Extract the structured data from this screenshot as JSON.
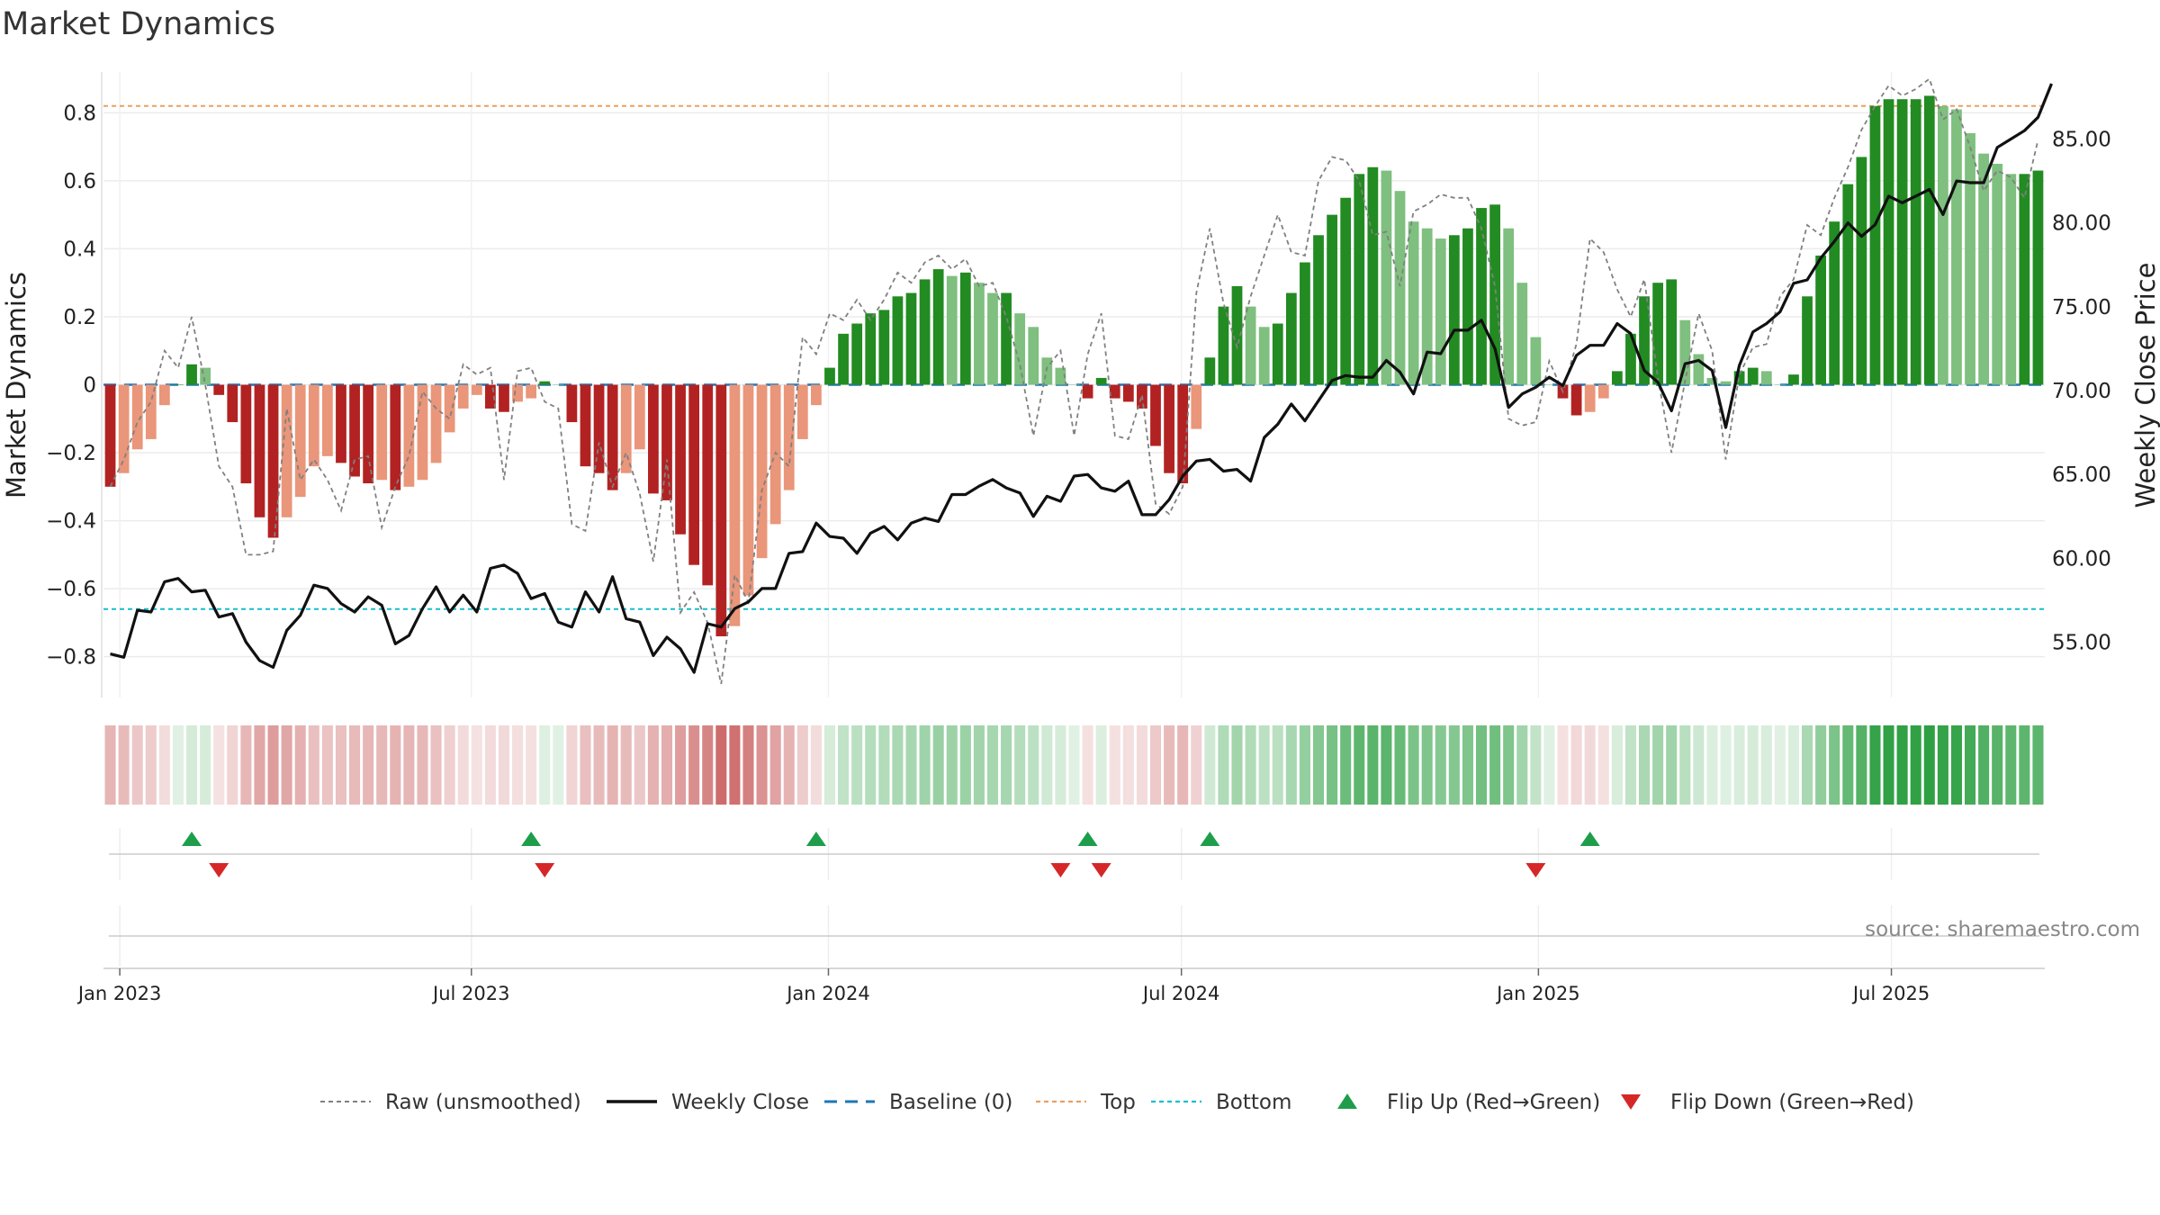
{
  "title": "Market Dynamics",
  "source": "source: sharemaestro.com",
  "colors": {
    "green_strong": "#228B22",
    "green_light": "#7FBF7F",
    "red_strong": "#B22222",
    "red_light": "#E9967A",
    "raw": "#808080",
    "close": "#111111",
    "baseline": "#1F77B4",
    "top": "#E8A060",
    "bottom": "#17BECF",
    "flip_up": "#1E9E4A",
    "flip_down": "#D62728"
  },
  "chart_data": {
    "type": "bar",
    "title": "Market Dynamics",
    "ylabel": "Market Dynamics",
    "y2label": "Weekly Close Price",
    "ylim": [
      -0.92,
      0.92
    ],
    "y2lim": [
      51.7,
      89.0
    ],
    "yticks": [
      {
        "v": 0.8,
        "label": "0.8"
      },
      {
        "v": 0.6,
        "label": "0.6"
      },
      {
        "v": 0.4,
        "label": "0.4"
      },
      {
        "v": 0.2,
        "label": "0.2"
      },
      {
        "v": 0,
        "label": "0"
      },
      {
        "v": -0.2,
        "label": "−0.2"
      },
      {
        "v": -0.4,
        "label": "−0.4"
      },
      {
        "v": -0.6,
        "label": "−0.6"
      },
      {
        "v": -0.8,
        "label": "−0.8"
      }
    ],
    "y2ticks": [
      {
        "v": 85,
        "label": "85.00"
      },
      {
        "v": 80,
        "label": "80.00"
      },
      {
        "v": 75,
        "label": "75.00"
      },
      {
        "v": 70,
        "label": "70.00"
      },
      {
        "v": 65,
        "label": "65.00"
      },
      {
        "v": 60,
        "label": "60.00"
      },
      {
        "v": 55,
        "label": "55.00"
      }
    ],
    "xticks": [
      {
        "week": 0.7,
        "label": "Jan 2023"
      },
      {
        "week": 26.6,
        "label": "Jul 2023"
      },
      {
        "week": 52.9,
        "label": "Jan 2024"
      },
      {
        "week": 78.9,
        "label": "Jul 2024"
      },
      {
        "week": 105.2,
        "label": "Jan 2025"
      },
      {
        "week": 131.2,
        "label": "Jul 2025"
      }
    ],
    "top": 0.82,
    "bottom": -0.66,
    "series": [
      {
        "name": "Market Dynamics",
        "values": [
          -0.3,
          -0.26,
          -0.19,
          -0.16,
          -0.06,
          0.0,
          0.06,
          0.05,
          -0.03,
          -0.11,
          -0.29,
          -0.39,
          -0.45,
          -0.39,
          -0.33,
          -0.24,
          -0.21,
          -0.23,
          -0.27,
          -0.29,
          -0.28,
          -0.31,
          -0.3,
          -0.28,
          -0.23,
          -0.14,
          -0.07,
          -0.03,
          -0.07,
          -0.08,
          -0.05,
          -0.04,
          0.01,
          0.0,
          -0.11,
          -0.24,
          -0.26,
          -0.31,
          -0.26,
          -0.19,
          -0.32,
          -0.34,
          -0.44,
          -0.53,
          -0.59,
          -0.74,
          -0.71,
          -0.62,
          -0.51,
          -0.41,
          -0.31,
          -0.16,
          -0.06,
          0.05,
          0.15,
          0.18,
          0.21,
          0.22,
          0.26,
          0.27,
          0.31,
          0.34,
          0.32,
          0.33,
          0.3,
          0.27,
          0.27,
          0.21,
          0.17,
          0.08,
          0.05,
          0.0,
          -0.04,
          0.02,
          -0.04,
          -0.05,
          -0.07,
          -0.18,
          -0.26,
          -0.29,
          -0.13,
          0.08,
          0.23,
          0.29,
          0.23,
          0.17,
          0.18,
          0.27,
          0.36,
          0.44,
          0.5,
          0.55,
          0.62,
          0.64,
          0.63,
          0.57,
          0.48,
          0.46,
          0.43,
          0.44,
          0.46,
          0.52,
          0.53,
          0.46,
          0.3,
          0.14,
          0.0,
          -0.04,
          -0.09,
          -0.08,
          -0.04,
          0.04,
          0.15,
          0.26,
          0.3,
          0.31,
          0.19,
          0.09,
          0.02,
          0.01,
          0.04,
          0.05,
          0.04,
          0.0,
          0.03,
          0.26,
          0.38,
          0.48,
          0.59,
          0.67,
          0.82,
          0.84,
          0.84,
          0.84,
          0.85,
          0.82,
          0.81,
          0.74,
          0.68,
          0.65,
          0.62,
          0.62,
          0.63
        ]
      },
      {
        "name": "Weekly Close",
        "values": [
          54.3,
          54.1,
          56.9,
          56.8,
          58.6,
          58.8,
          58.0,
          58.1,
          56.5,
          56.7,
          55.0,
          53.9,
          53.5,
          55.7,
          56.6,
          58.4,
          58.2,
          57.3,
          56.8,
          57.7,
          57.2,
          54.9,
          55.4,
          57.0,
          58.3,
          56.8,
          57.8,
          56.8,
          59.4,
          59.6,
          59.1,
          57.6,
          57.9,
          56.2,
          55.9,
          58.0,
          56.8,
          58.9,
          56.4,
          56.2,
          54.2,
          55.3,
          54.6,
          53.2,
          56.1,
          55.9,
          57.0,
          57.4,
          58.2,
          58.2,
          60.3,
          60.4,
          62.1,
          61.3,
          61.2,
          60.3,
          61.5,
          61.9,
          61.1,
          62.1,
          62.4,
          62.2,
          63.8,
          63.8,
          64.3,
          64.7,
          64.2,
          63.9,
          62.5,
          63.7,
          63.4,
          64.9,
          65.0,
          64.2,
          64.0,
          64.6,
          62.6,
          62.6,
          63.5,
          64.9,
          65.8,
          65.9,
          65.2,
          65.3,
          64.6,
          67.2,
          68.0,
          69.2,
          68.2,
          69.4,
          70.6,
          70.9,
          70.8,
          70.8,
          71.8,
          71.1,
          69.8,
          72.3,
          72.2,
          73.6,
          73.6,
          74.2,
          72.5,
          69.0,
          69.8,
          70.2,
          70.8,
          70.3,
          72.1,
          72.7,
          72.7,
          74.0,
          73.4,
          71.2,
          70.5,
          68.8,
          71.6,
          71.8,
          71.2,
          67.8,
          71.5,
          73.5,
          74.0,
          74.7,
          76.4,
          76.6,
          77.9,
          78.9,
          80.0,
          79.2,
          79.9,
          81.6,
          81.2,
          81.6,
          82.0,
          80.5,
          82.5,
          82.4,
          82.4,
          84.5,
          85.0,
          85.5,
          86.3,
          88.3
        ]
      },
      {
        "name": "Raw (unsmoothed)",
        "values": [
          -0.3,
          -0.22,
          -0.11,
          -0.05,
          0.1,
          0.05,
          0.2,
          0.0,
          -0.24,
          -0.3,
          -0.5,
          -0.5,
          -0.49,
          -0.07,
          -0.28,
          -0.22,
          -0.28,
          -0.37,
          -0.22,
          -0.21,
          -0.42,
          -0.3,
          -0.21,
          -0.02,
          -0.07,
          -0.1,
          0.06,
          0.03,
          0.05,
          -0.28,
          0.04,
          0.05,
          -0.05,
          -0.07,
          -0.41,
          -0.43,
          -0.17,
          -0.3,
          -0.2,
          -0.32,
          -0.52,
          -0.22,
          -0.67,
          -0.61,
          -0.7,
          -0.88,
          -0.56,
          -0.64,
          -0.31,
          -0.2,
          -0.24,
          0.14,
          0.09,
          0.21,
          0.19,
          0.25,
          0.19,
          0.25,
          0.33,
          0.3,
          0.36,
          0.38,
          0.34,
          0.37,
          0.29,
          0.3,
          0.2,
          0.06,
          -0.15,
          0.05,
          0.1,
          -0.15,
          0.09,
          0.21,
          -0.15,
          -0.16,
          -0.03,
          -0.35,
          -0.38,
          -0.3,
          0.27,
          0.46,
          0.24,
          0.11,
          0.26,
          0.38,
          0.5,
          0.39,
          0.38,
          0.6,
          0.67,
          0.66,
          0.6,
          0.44,
          0.45,
          0.29,
          0.51,
          0.53,
          0.56,
          0.55,
          0.55,
          0.46,
          0.29,
          -0.1,
          -0.12,
          -0.11,
          0.07,
          -0.02,
          0.12,
          0.43,
          0.39,
          0.28,
          0.2,
          0.31,
          0.02,
          -0.2,
          0.01,
          0.21,
          0.1,
          -0.22,
          0.03,
          0.11,
          0.12,
          0.26,
          0.31,
          0.47,
          0.44,
          0.55,
          0.64,
          0.75,
          0.82,
          0.88,
          0.85,
          0.87,
          0.9,
          0.78,
          0.81,
          0.7,
          0.57,
          0.63,
          0.61,
          0.55,
          0.72
        ]
      }
    ],
    "flip_up_weeks": [
      6,
      31,
      52,
      72,
      81,
      109
    ],
    "flip_down_weeks": [
      8,
      32,
      70,
      73,
      105
    ]
  },
  "legend": [
    {
      "key": "raw",
      "label": "Raw (unsmoothed)"
    },
    {
      "key": "close",
      "label": "Weekly Close"
    },
    {
      "key": "baseline",
      "label": "Baseline (0)"
    },
    {
      "key": "top",
      "label": "Top"
    },
    {
      "key": "bottom",
      "label": "Bottom"
    },
    {
      "key": "flip_up",
      "label": "Flip Up (Red→Green)"
    },
    {
      "key": "flip_down",
      "label": "Flip Down (Green→Red)"
    }
  ]
}
